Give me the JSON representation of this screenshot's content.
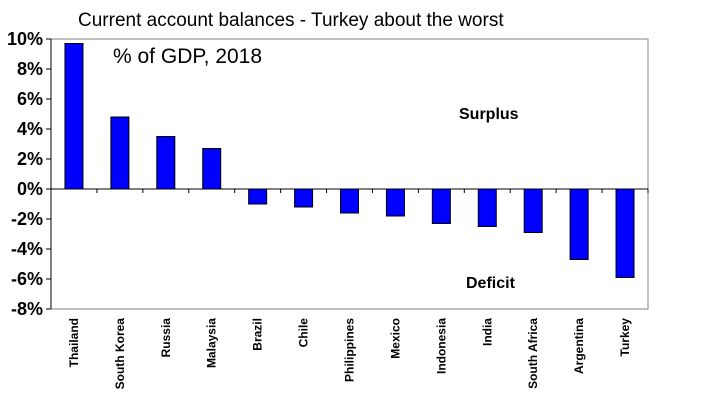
{
  "chart_data": {
    "type": "bar",
    "title": "Current account balances - Turkey about the worst",
    "inner_label": "% of GDP, 2018",
    "categories": [
      "Thailand",
      "South Korea",
      "Russia",
      "Malaysia",
      "Brazil",
      "Chile",
      "Philippines",
      "Mexico",
      "Indonesia",
      "India",
      "South Africa",
      "Argentina",
      "Turkey"
    ],
    "values": [
      9.7,
      4.8,
      3.5,
      2.7,
      -1.0,
      -1.2,
      -1.6,
      -1.8,
      -2.3,
      -2.5,
      -2.9,
      -4.7,
      -5.9
    ],
    "ylim": [
      -8,
      10
    ],
    "yticks": [
      "10%",
      "8%",
      "6%",
      "4%",
      "2%",
      "0%",
      "-2%",
      "-4%",
      "-6%",
      "-8%"
    ],
    "annotations": {
      "surplus": "Surplus",
      "deficit": "Deficit"
    },
    "bar_color": "#0000ff",
    "grid": false,
    "legend": "none"
  }
}
